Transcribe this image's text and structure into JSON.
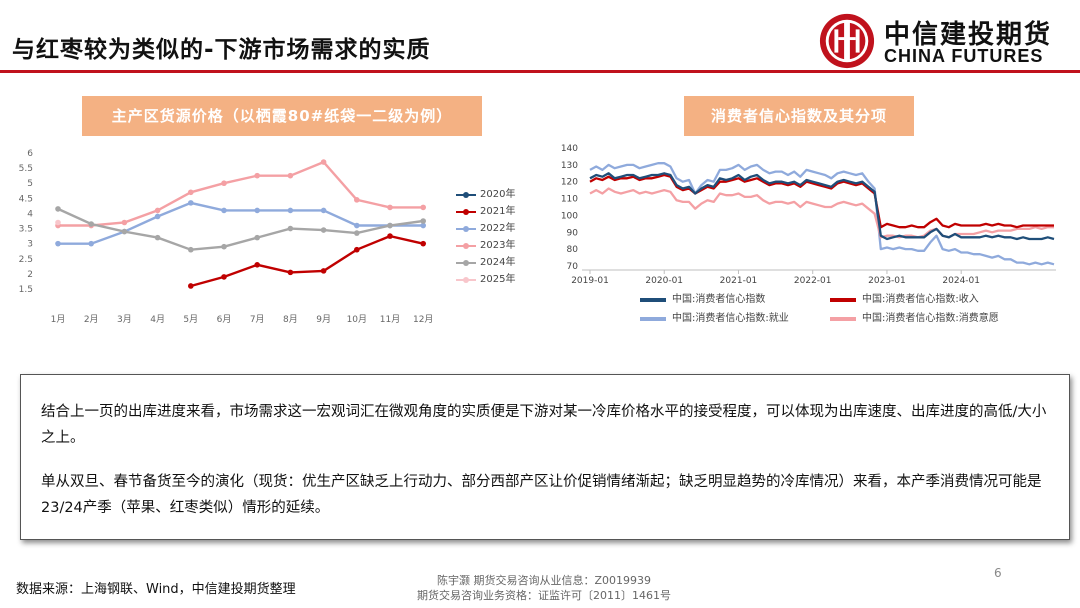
{
  "slide": {
    "title": "与红枣较为类似的-下游市场需求的实质",
    "page_number": "6"
  },
  "logo": {
    "name_cn": "中信建投期货",
    "name_en": "CHINA FUTURES",
    "brand_color": "#c0121d"
  },
  "left_chart": {
    "header": "主产区货源价格（以栖霞80#纸袋一二级为例）"
  },
  "right_chart": {
    "header": "消费者信心指数及其分项"
  },
  "chart_data": [
    {
      "type": "line",
      "title": "主产区货源价格（以栖霞80#纸袋一二级为例）",
      "categories": [
        "1月",
        "2月",
        "3月",
        "4月",
        "5月",
        "6月",
        "7月",
        "8月",
        "9月",
        "10月",
        "11月",
        "12月"
      ],
      "ylim": [
        1.5,
        6
      ],
      "yticks": [
        "1.5",
        "2",
        "2.5",
        "3",
        "3.5",
        "4",
        "4.5",
        "5",
        "5.5",
        "6"
      ],
      "legend_position": "right",
      "grid": false,
      "series": [
        {
          "name": "2020年",
          "color": "#1f4e79",
          "values": [
            null,
            null,
            null,
            null,
            null,
            null,
            null,
            null,
            null,
            null,
            null,
            null
          ]
        },
        {
          "name": "2021年",
          "color": "#c00000",
          "values": [
            null,
            null,
            null,
            null,
            1.6,
            1.9,
            2.3,
            2.05,
            2.1,
            2.8,
            3.25,
            3.0
          ]
        },
        {
          "name": "2022年",
          "color": "#8faadc",
          "values": [
            3.0,
            3.0,
            3.4,
            3.9,
            4.35,
            4.1,
            4.1,
            4.1,
            4.1,
            3.6,
            3.6,
            3.6
          ]
        },
        {
          "name": "2023年",
          "color": "#f4a0a4",
          "values": [
            3.6,
            3.6,
            3.7,
            4.1,
            4.7,
            5.0,
            5.25,
            5.25,
            5.7,
            4.45,
            4.2,
            4.2
          ]
        },
        {
          "name": "2024年",
          "color": "#a6a6a6",
          "values": [
            4.15,
            3.65,
            3.4,
            3.2,
            2.8,
            2.9,
            3.2,
            3.5,
            3.45,
            3.35,
            3.6,
            3.75
          ]
        },
        {
          "name": "2025年",
          "color": "#f8c6cb",
          "values": [
            3.7,
            null,
            null,
            null,
            null,
            null,
            null,
            null,
            null,
            null,
            null,
            null
          ]
        }
      ]
    },
    {
      "type": "line",
      "title": "消费者信心指数及其分项",
      "x_ticks": [
        "2019-01",
        "2020-01",
        "2021-01",
        "2022-01",
        "2023-01",
        "2024-01"
      ],
      "ylim": [
        70,
        140
      ],
      "yticks": [
        "70",
        "80",
        "90",
        "100",
        "110",
        "120",
        "130",
        "140"
      ],
      "legend_position": "bottom",
      "grid": false,
      "series": [
        {
          "name": "中国:消费者信心指数",
          "color": "#1f4e79",
          "values": [
            122,
            124,
            123,
            125,
            122,
            123,
            124,
            124,
            122,
            123,
            124,
            124,
            125,
            124,
            118,
            116,
            117,
            113,
            116,
            118,
            117,
            122,
            121,
            122,
            124,
            121,
            123,
            124,
            121,
            119,
            120,
            120,
            119,
            120,
            118,
            121,
            120,
            119,
            118,
            117,
            120,
            121,
            120,
            119,
            120,
            117,
            114,
            88,
            86,
            87,
            88,
            87,
            87,
            87,
            87,
            90,
            92,
            88,
            87,
            89,
            87,
            87,
            87,
            87,
            88,
            87,
            88,
            87,
            87,
            86,
            87,
            86,
            86,
            86,
            87,
            86
          ]
        },
        {
          "name": "中国:消费者信心指数:收入",
          "color": "#c00000",
          "values": [
            120,
            122,
            121,
            123,
            121,
            122,
            122,
            123,
            121,
            122,
            122,
            123,
            124,
            123,
            117,
            115,
            116,
            113,
            115,
            117,
            116,
            120,
            120,
            121,
            122,
            120,
            121,
            122,
            120,
            118,
            119,
            119,
            118,
            119,
            117,
            120,
            119,
            118,
            117,
            116,
            119,
            120,
            119,
            118,
            119,
            116,
            113,
            93,
            95,
            94,
            93,
            93,
            94,
            93,
            93,
            96,
            98,
            94,
            93,
            95,
            94,
            94,
            94,
            94,
            95,
            94,
            95,
            94,
            94,
            93,
            94,
            94,
            94,
            94,
            94,
            94
          ]
        },
        {
          "name": "中国:消费者信心指数:就业",
          "color": "#8faadc",
          "values": [
            127,
            129,
            127,
            130,
            128,
            129,
            130,
            130,
            128,
            129,
            130,
            131,
            131,
            129,
            122,
            120,
            121,
            113,
            118,
            121,
            120,
            127,
            127,
            128,
            130,
            127,
            129,
            130,
            127,
            125,
            126,
            126,
            124,
            126,
            123,
            127,
            126,
            125,
            124,
            122,
            125,
            126,
            125,
            124,
            125,
            120,
            116,
            80,
            81,
            80,
            81,
            80,
            80,
            79,
            79,
            84,
            88,
            80,
            79,
            80,
            78,
            78,
            77,
            77,
            76,
            75,
            76,
            74,
            74,
            72,
            72,
            71,
            72,
            71,
            72,
            71
          ]
        },
        {
          "name": "中国:消费者信心指数:消费意愿",
          "color": "#f4a0a4",
          "values": [
            113,
            115,
            113,
            116,
            114,
            113,
            114,
            115,
            113,
            114,
            113,
            114,
            115,
            114,
            109,
            108,
            108,
            104,
            107,
            109,
            108,
            113,
            112,
            112,
            113,
            111,
            111,
            112,
            109,
            107,
            108,
            108,
            107,
            108,
            105,
            108,
            107,
            106,
            105,
            105,
            107,
            108,
            107,
            106,
            107,
            104,
            101,
            87,
            88,
            88,
            87,
            88,
            88,
            87,
            88,
            91,
            92,
            88,
            87,
            89,
            89,
            89,
            89,
            90,
            91,
            90,
            91,
            91,
            91,
            92,
            92,
            92,
            93,
            92,
            93,
            93
          ]
        }
      ]
    }
  ],
  "textbox": {
    "paragraph1": "结合上一页的出库进度来看，市场需求这一宏观词汇在微观角度的实质便是下游对某一冷库价格水平的接受程度，可以体现为出库速度、出库进度的高低/大小之上。",
    "paragraph2": "单从双旦、春节备货至今的演化（现货：优生产区缺乏上行动力、部分西部产区让价促销情绪渐起；缺乏明显趋势的冷库情况）来看，本产季消费情况可能是23/24产季（苹果、红枣类似）情形的延续。"
  },
  "footer": {
    "source": "数据来源：上海钢联、Wind，中信建投期货整理",
    "analyst": "陈宇灏 期货交易咨询从业信息：Z0019939",
    "license": "期货交易咨询业务资格：证监许可〔2011〕1461号"
  }
}
